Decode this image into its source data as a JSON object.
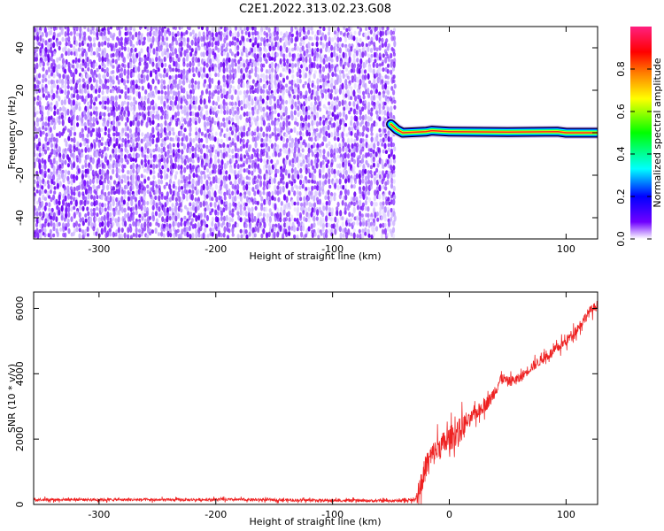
{
  "title": "C2E1.2022.313.02.23.G08",
  "chart_data": [
    {
      "type": "heatmap",
      "xlabel": "Height of straight line (km)",
      "ylabel": "Frequency (Hz)",
      "xlim": [
        -356,
        127
      ],
      "ylim": [
        -50,
        50
      ],
      "xticks": [
        -300,
        -200,
        -100,
        0,
        100
      ],
      "yticks": [
        -40,
        -20,
        0,
        20,
        40
      ],
      "noise_region_x": [
        -356,
        -50
      ],
      "signal_tone": {
        "x_range": [
          -50,
          127
        ],
        "frequency_hz": 0,
        "points": [
          {
            "x": -50,
            "f": 4
          },
          {
            "x": -45,
            "f": 1.5
          },
          {
            "x": -40,
            "f": 0
          },
          {
            "x": -20,
            "f": 0.5
          },
          {
            "x": -15,
            "f": 1
          },
          {
            "x": 0,
            "f": 0.5
          },
          {
            "x": 50,
            "f": 0.3
          },
          {
            "x": 93,
            "f": 0.5
          },
          {
            "x": 100,
            "f": 0
          },
          {
            "x": 127,
            "f": 0
          }
        ]
      },
      "colorbar": {
        "label": "Normalized spectral amplitude",
        "range": [
          0,
          1
        ],
        "ticks": [
          0.0,
          0.2,
          0.4,
          0.6,
          0.8
        ],
        "tick_labels": [
          "0.0",
          "0.2",
          "0.4",
          "0.6",
          "0.8"
        ],
        "colormap": [
          "#ffffff",
          "#7000ff",
          "#0000ff",
          "#00ffff",
          "#00ff00",
          "#ffff00",
          "#ff7f00",
          "#ff0000",
          "#ff2080"
        ]
      }
    },
    {
      "type": "line",
      "xlabel": "Height of straight line (km)",
      "ylabel": "SNR (10 * v/v)",
      "xlim": [
        -356,
        127
      ],
      "ylim": [
        0,
        6500
      ],
      "xticks": [
        -300,
        -200,
        -100,
        0,
        100
      ],
      "yticks": [
        0,
        2000,
        4000,
        6000
      ],
      "series": [
        {
          "color": "#ee2222",
          "x": [
            -356,
            -300,
            -250,
            -200,
            -150,
            -100,
            -50,
            -30,
            -25,
            -20,
            -15,
            -10,
            0,
            10,
            20,
            35,
            45,
            50,
            60,
            70,
            80,
            90,
            100,
            110,
            120,
            127
          ],
          "y": [
            150,
            150,
            140,
            150,
            140,
            120,
            110,
            130,
            450,
            1200,
            1500,
            1700,
            2000,
            2300,
            2700,
            3200,
            3900,
            3750,
            3850,
            4200,
            4450,
            4700,
            5000,
            5400,
            5900,
            6100
          ]
        }
      ]
    }
  ]
}
